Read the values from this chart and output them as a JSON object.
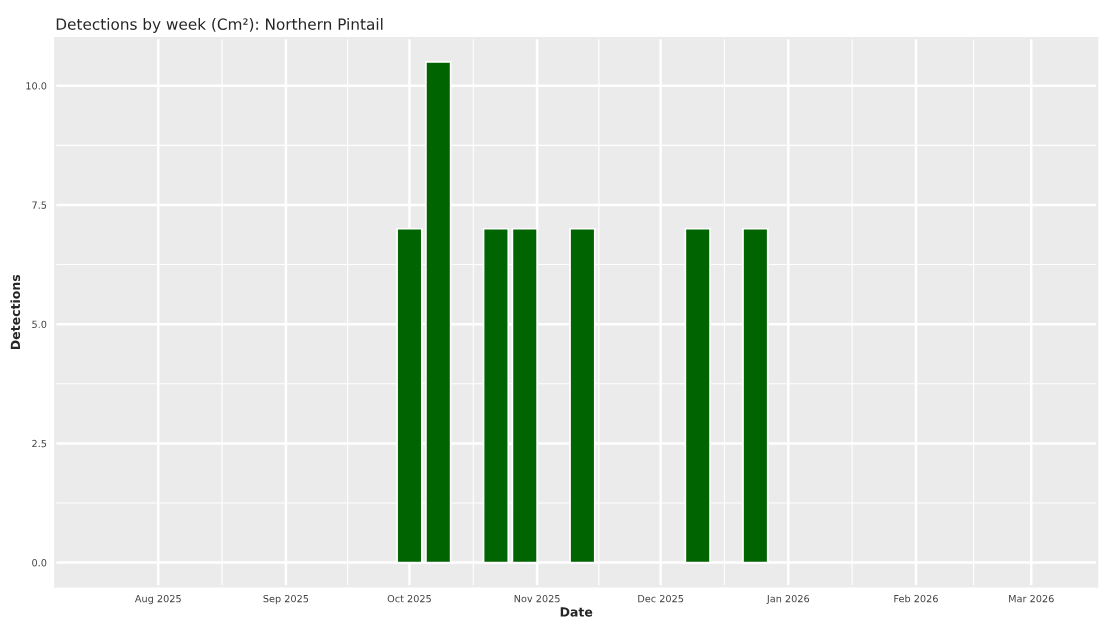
{
  "chart_data": {
    "type": "bar",
    "title": "Detections by week (Cm²): Northern Pintail",
    "xlabel": "Date",
    "ylabel": "Detections",
    "x": [
      "2025-10-01",
      "2025-10-08",
      "2025-10-22",
      "2025-10-29",
      "2025-11-12",
      "2025-12-10",
      "2025-12-24"
    ],
    "values": [
      7,
      10.5,
      7,
      7,
      7,
      7,
      7
    ],
    "color": "#006400",
    "xlim": [
      "2025-07-07",
      "2026-03-17"
    ],
    "xticks": [
      {
        "value": "2025-08-01",
        "label": "Aug 2025"
      },
      {
        "value": "2025-09-01",
        "label": "Sep 2025"
      },
      {
        "value": "2025-10-01",
        "label": "Oct 2025"
      },
      {
        "value": "2025-11-01",
        "label": "Nov 2025"
      },
      {
        "value": "2025-12-01",
        "label": "Dec 2025"
      },
      {
        "value": "2026-01-01",
        "label": "Jan 2026"
      },
      {
        "value": "2026-02-01",
        "label": "Feb 2026"
      },
      {
        "value": "2026-03-01",
        "label": "Mar 2026"
      }
    ],
    "ylim": [
      -0.5,
      11
    ],
    "yticks": [
      {
        "value": 0,
        "label": "0.0"
      },
      {
        "value": 2.5,
        "label": "2.5"
      },
      {
        "value": 5,
        "label": "5.0"
      },
      {
        "value": 7.5,
        "label": "7.5"
      },
      {
        "value": 10,
        "label": "10.0"
      }
    ],
    "grid": true
  }
}
